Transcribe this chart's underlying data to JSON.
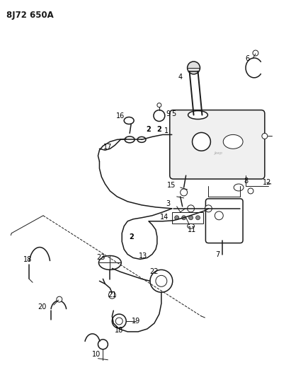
{
  "title": "8J72 650A",
  "bg_color": "#ffffff",
  "line_color": "#1a1a1a",
  "label_color": "#000000",
  "fig_width": 4.11,
  "fig_height": 5.33,
  "dpi": 100
}
